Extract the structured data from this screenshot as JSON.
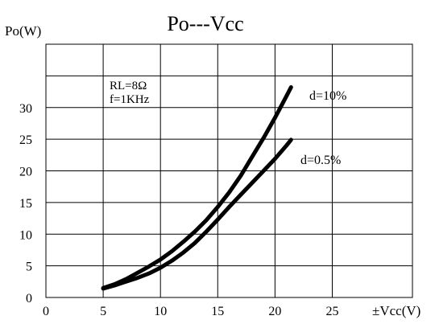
{
  "chart_data": {
    "type": "line",
    "title": "Po---Vcc",
    "ylabel": "Po(W)",
    "xlabel": "±Vcc(V)",
    "xlim": [
      0,
      32
    ],
    "ylim": [
      0,
      40
    ],
    "x_ticks": [
      0,
      5,
      10,
      15,
      20,
      25
    ],
    "y_ticks": [
      0,
      5,
      10,
      15,
      20,
      25,
      30
    ],
    "grid": true,
    "annotations": [
      "RL=8Ω",
      "f=1KHz"
    ],
    "series": [
      {
        "name": "d=10%",
        "x": [
          5,
          6,
          7,
          8,
          9,
          10,
          11,
          12,
          13,
          14,
          15,
          16,
          17,
          18,
          19,
          20,
          21,
          21.4
        ],
        "y": [
          1.5,
          2.1,
          2.9,
          3.9,
          4.9,
          6.0,
          7.3,
          8.8,
          10.4,
          12.2,
          14.3,
          16.6,
          19.2,
          22.2,
          25.2,
          28.4,
          31.8,
          33.2
        ]
      },
      {
        "name": "d=0.5%",
        "x": [
          5,
          6,
          7,
          8,
          9,
          10,
          11,
          12,
          13,
          14,
          15,
          16,
          17,
          18,
          19,
          20,
          21,
          21.4
        ],
        "y": [
          1.4,
          1.9,
          2.5,
          3.1,
          3.8,
          4.7,
          5.8,
          7.1,
          8.6,
          10.4,
          12.3,
          14.3,
          16.2,
          18.1,
          20.0,
          21.9,
          24.0,
          24.9
        ]
      }
    ]
  }
}
